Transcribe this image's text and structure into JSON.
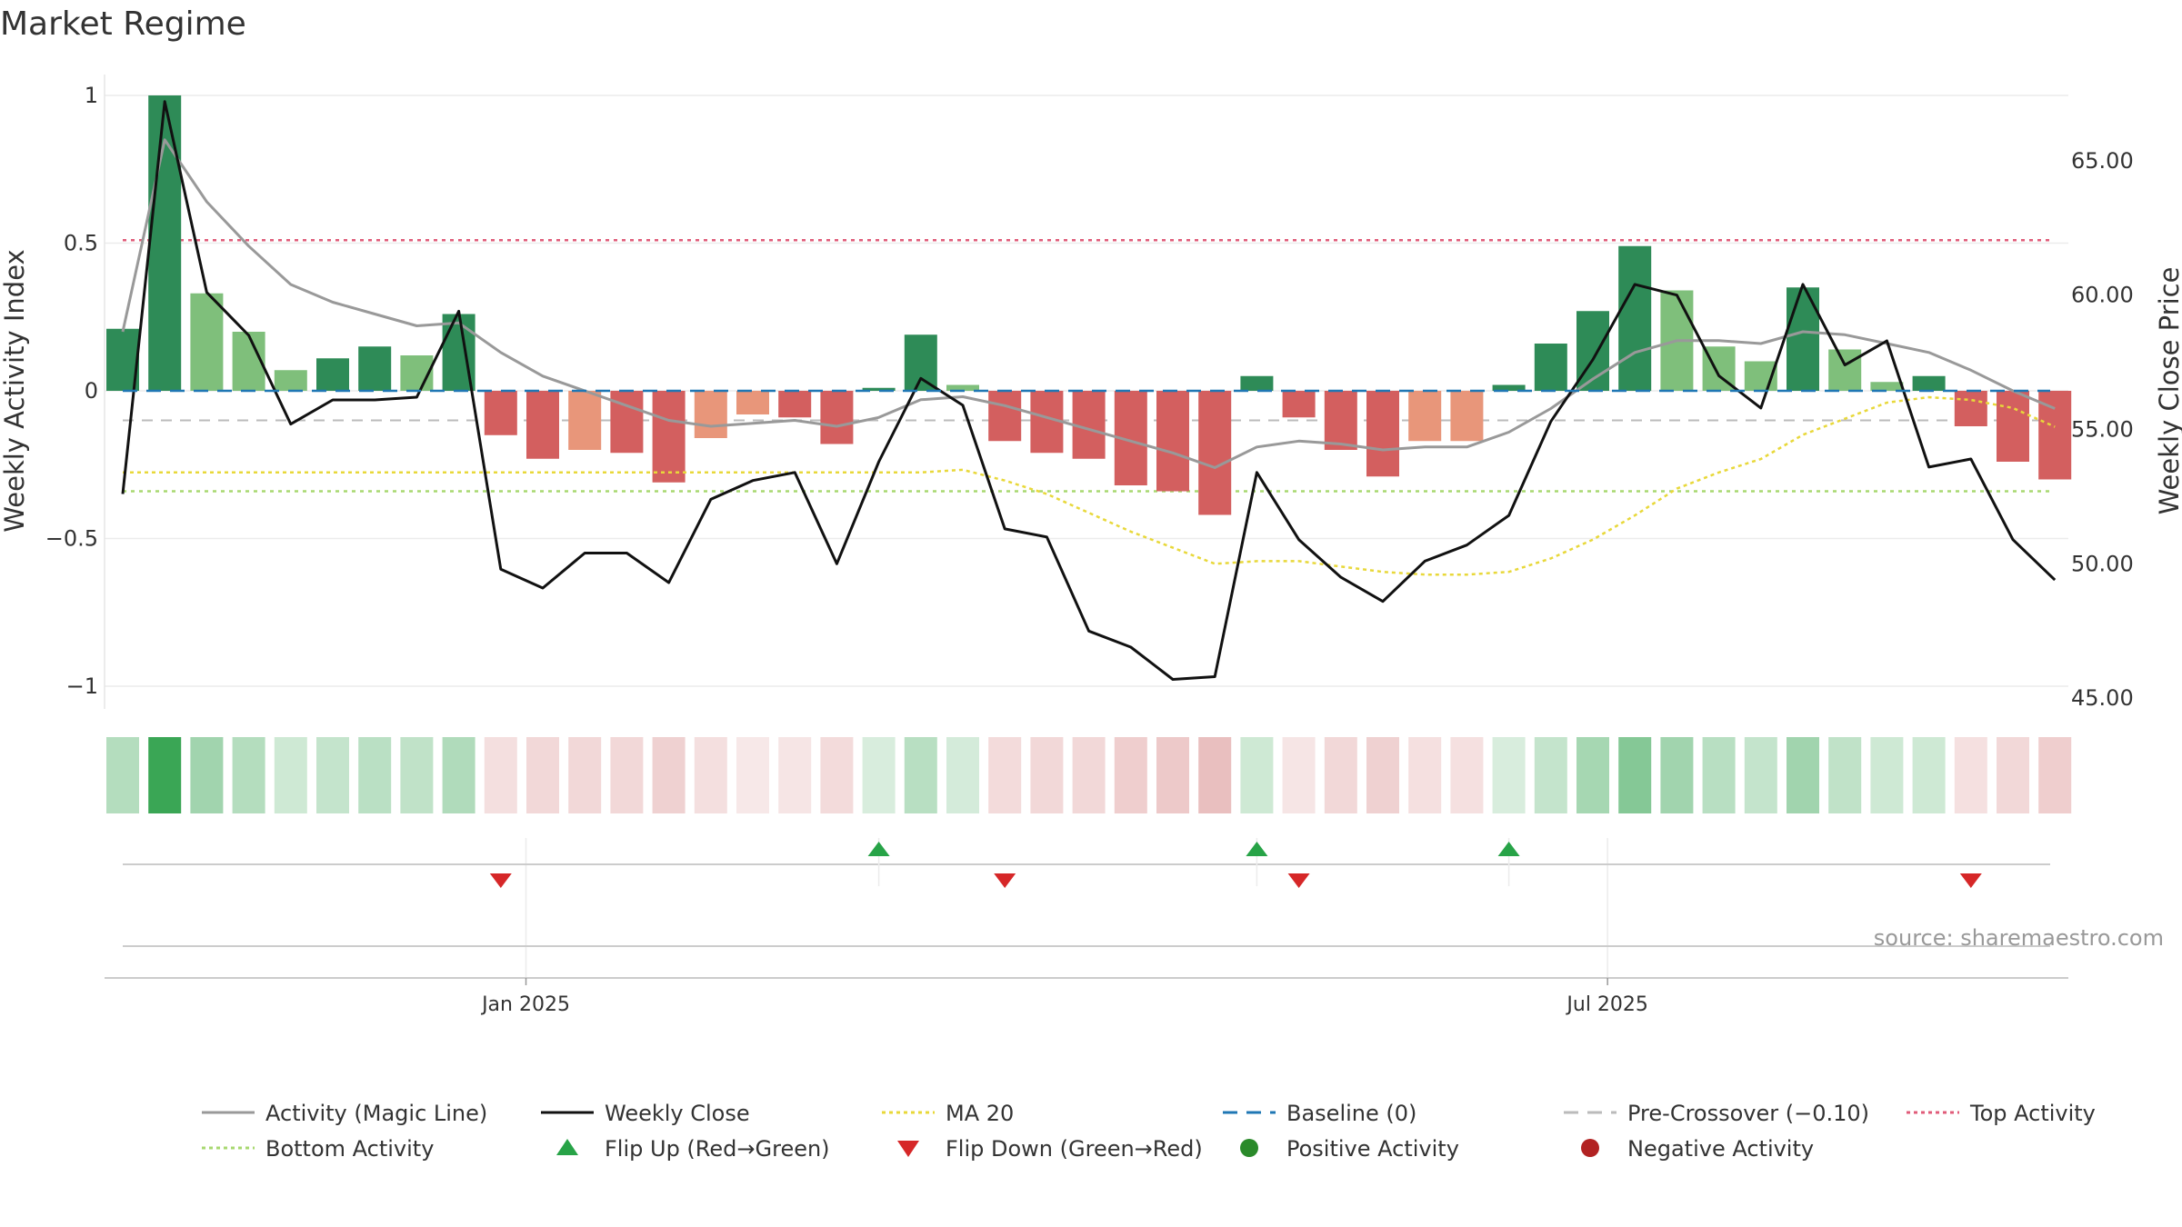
{
  "chart_data": {
    "type": "bar",
    "title": "Market Regime",
    "ylabel_left": "Weekly Activity Index",
    "ylabel_right": "Weekly Close Price",
    "source": "source: sharemaestro.com",
    "ylim_left": [
      -1.08,
      1.1
    ],
    "ylim_right": [
      44.6,
      67.6
    ],
    "yticks_left": [
      {
        "v": 1,
        "label": "1"
      },
      {
        "v": 0.5,
        "label": "0.5"
      },
      {
        "v": 0,
        "label": "0"
      },
      {
        "v": -0.5,
        "label": "−0.5"
      },
      {
        "v": -1,
        "label": "−1"
      }
    ],
    "yticks_right": [
      {
        "v": 65,
        "label": "65.00"
      },
      {
        "v": 60,
        "label": "60.00"
      },
      {
        "v": 55,
        "label": "55.00"
      },
      {
        "v": 50,
        "label": "50.00"
      },
      {
        "v": 45,
        "label": "45.00"
      }
    ],
    "xticks": [
      {
        "i": 9.6,
        "label": "Jan 2025"
      },
      {
        "i": 35.35,
        "label": "Jul 2025"
      }
    ],
    "reference_lines": {
      "baseline": 0,
      "pre_crossover": -0.1,
      "top": 0.51,
      "bottom": -0.34
    },
    "activity": [
      0.21,
      1.0,
      0.33,
      0.2,
      0.07,
      0.11,
      0.15,
      0.12,
      0.26,
      -0.15,
      -0.23,
      -0.2,
      -0.21,
      -0.31,
      -0.16,
      -0.08,
      -0.09,
      -0.18,
      0.01,
      0.19,
      0.02,
      -0.17,
      -0.21,
      -0.23,
      -0.32,
      -0.34,
      -0.42,
      0.05,
      -0.09,
      -0.2,
      -0.29,
      -0.17,
      -0.17,
      0.02,
      0.16,
      0.27,
      0.49,
      0.34,
      0.15,
      0.1,
      0.35,
      0.14,
      0.03,
      0.05,
      -0.12,
      -0.24,
      -0.3
    ],
    "bar_color_class": [
      "dg",
      "dg",
      "lg",
      "lg",
      "lg",
      "dg",
      "dg",
      "lg",
      "dg",
      "rd",
      "rd",
      "sa",
      "rd",
      "rd",
      "sa",
      "sa",
      "rd",
      "rd",
      "dg",
      "dg",
      "lg",
      "rd",
      "rd",
      "rd",
      "rd",
      "rd",
      "rd",
      "dg",
      "rd",
      "rd",
      "rd",
      "sa",
      "sa",
      "dg",
      "dg",
      "dg",
      "dg",
      "lg",
      "lg",
      "lg",
      "dg",
      "lg",
      "lg",
      "dg",
      "rd",
      "rd",
      "rd"
    ],
    "magic_line": [
      0.2,
      0.85,
      0.64,
      0.49,
      0.36,
      0.3,
      0.26,
      0.22,
      0.23,
      0.13,
      0.05,
      0.0,
      -0.05,
      -0.1,
      -0.12,
      -0.11,
      -0.1,
      -0.12,
      -0.09,
      -0.03,
      -0.02,
      -0.05,
      -0.09,
      -0.13,
      -0.17,
      -0.21,
      -0.26,
      -0.19,
      -0.17,
      -0.18,
      -0.2,
      -0.19,
      -0.19,
      -0.14,
      -0.06,
      0.04,
      0.13,
      0.17,
      0.17,
      0.16,
      0.2,
      0.19,
      0.16,
      0.13,
      0.07,
      0.0,
      -0.06
    ],
    "weekly_close": [
      52.6,
      67.2,
      60.1,
      58.5,
      55.2,
      56.1,
      56.1,
      56.2,
      59.4,
      49.8,
      49.1,
      50.4,
      50.4,
      49.3,
      52.4,
      53.1,
      53.4,
      50.0,
      53.8,
      56.9,
      55.9,
      51.3,
      51.0,
      47.5,
      46.9,
      45.7,
      45.8,
      53.4,
      50.9,
      49.5,
      48.6,
      50.1,
      50.7,
      51.8,
      55.3,
      57.6,
      60.4,
      60.0,
      57.0,
      55.8,
      60.4,
      57.4,
      58.3,
      53.6,
      53.9,
      50.9,
      49.4
    ],
    "ma20": [
      53.4,
      53.4,
      53.4,
      53.4,
      53.4,
      53.4,
      53.4,
      53.4,
      53.4,
      53.4,
      53.4,
      53.4,
      53.4,
      53.4,
      53.4,
      53.4,
      53.4,
      53.4,
      53.4,
      53.4,
      53.5,
      53.1,
      52.6,
      51.9,
      51.2,
      50.6,
      50.0,
      50.1,
      50.1,
      49.9,
      49.7,
      49.6,
      49.6,
      49.7,
      50.2,
      50.9,
      51.8,
      52.8,
      53.4,
      53.9,
      54.8,
      55.4,
      56.0,
      56.2,
      56.1,
      55.8,
      55.1
    ],
    "strip_alpha": [
      0.38,
      1.0,
      0.48,
      0.38,
      0.25,
      0.3,
      0.35,
      0.32,
      0.4,
      0.25,
      0.3,
      0.3,
      0.3,
      0.36,
      0.25,
      0.18,
      0.2,
      0.28,
      0.2,
      0.36,
      0.22,
      0.28,
      0.3,
      0.3,
      0.38,
      0.42,
      0.5,
      0.25,
      0.2,
      0.3,
      0.36,
      0.24,
      0.24,
      0.2,
      0.3,
      0.45,
      0.62,
      0.48,
      0.36,
      0.3,
      0.48,
      0.32,
      0.25,
      0.25,
      0.24,
      0.3,
      0.38
    ],
    "flip_up": [
      18,
      27,
      33
    ],
    "flip_down": [
      9,
      21,
      28,
      44
    ],
    "legend": [
      [
        "Activity (Magic Line)",
        "Weekly Close",
        "MA 20",
        "Baseline (0)",
        "Pre-Crossover (−0.10)",
        "Top Activity"
      ],
      [
        "Bottom Activity",
        "Flip Up (Red→Green)",
        "Flip Down (Green→Red)",
        "Positive Activity",
        "Negative Activity"
      ]
    ],
    "colors": {
      "dg": "#2e8b57",
      "lg": "#7fbf7b",
      "rd": "#d35f5f",
      "sa": "#e8967a",
      "strip_green": "#3aa655",
      "strip_red": "#d47f7f",
      "magic": "#999999",
      "close": "#111111",
      "ma20": "#e8d83a",
      "baseline": "#1f77b4",
      "pre_crossover": "#bbbbbb",
      "top": "#e05c7a",
      "bottom": "#a8d870",
      "flip_up": "#27a347",
      "flip_down": "#d62728",
      "positive": "#2a8a2a",
      "negative": "#b22222"
    }
  }
}
